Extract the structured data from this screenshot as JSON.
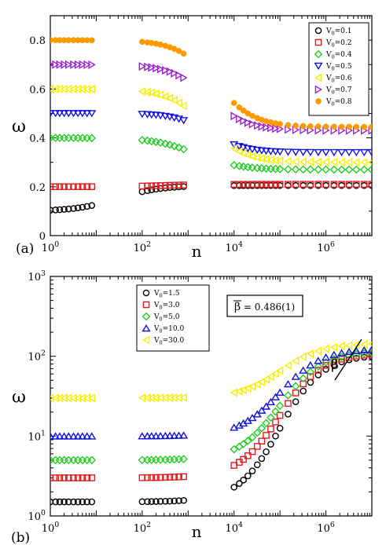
{
  "chart_data": [
    {
      "panel": "(a)",
      "type": "scatter",
      "xscale": "log",
      "xlim": [
        1,
        10000000
      ],
      "ylim": [
        0,
        0.9
      ],
      "xlabel": "n",
      "ylabel": "ω",
      "xticks": [
        {
          "value": 1,
          "base": "10",
          "exp": "0"
        },
        {
          "value": 100,
          "base": "10",
          "exp": "2"
        },
        {
          "value": 10000,
          "base": "10",
          "exp": "4"
        },
        {
          "value": 1000000,
          "base": "10",
          "exp": "6"
        }
      ],
      "yticks": [
        {
          "value": 0,
          "label": "0"
        },
        {
          "value": 0.2,
          "label": "0.2"
        },
        {
          "value": 0.4,
          "label": "0.4"
        },
        {
          "value": 0.6,
          "label": "0.6"
        },
        {
          "value": 0.8,
          "label": "0.8"
        }
      ],
      "legend_position": "top-right",
      "series": [
        {
          "name_base": "V",
          "name_sub": "0",
          "name_rest": "=0.1",
          "marker": "circle",
          "color": "#000000",
          "flat": 0.1,
          "knee": 30,
          "final": 0.205,
          "slope": 1.0
        },
        {
          "name_base": "V",
          "name_sub": "0",
          "name_rest": "=0.2",
          "marker": "square",
          "color": "#e41a1c",
          "flat": 0.2,
          "knee": 300,
          "final": 0.21,
          "slope": 1.0
        },
        {
          "name_base": "V",
          "name_sub": "0",
          "name_rest": "=0.4",
          "marker": "diamond",
          "color": "#22cc22",
          "flat": 0.4,
          "knee": 1500,
          "final": 0.27,
          "slope": 1.0
        },
        {
          "name_base": "V",
          "name_sub": "0",
          "name_rest": "=0.5",
          "marker": "triangle-down",
          "color": "#1111dd",
          "flat": 0.5,
          "knee": 3000,
          "final": 0.34,
          "slope": 1.2
        },
        {
          "name_base": "V",
          "name_sub": "0",
          "name_rest": "=0.6",
          "marker": "triangle-left",
          "color": "#f5f000",
          "flat": 0.6,
          "knee": 2500,
          "final": 0.3,
          "slope": 1.1
        },
        {
          "name_base": "V",
          "name_sub": "0",
          "name_rest": "=0.7",
          "marker": "triangle-right",
          "color": "#9a22cc",
          "flat": 0.7,
          "knee": 3000,
          "final": 0.43,
          "slope": 1.1
        },
        {
          "name_base": "V",
          "name_sub": "0",
          "name_rest": "=0.8",
          "marker": "filled-circle",
          "color": "#ff9900",
          "flat": 0.8,
          "knee": 4000,
          "final": 0.445,
          "slope": 1.1
        }
      ]
    },
    {
      "panel": "(b)",
      "type": "scatter",
      "xscale": "log",
      "yscale": "log",
      "xlim": [
        1,
        10000000
      ],
      "ylim": [
        1,
        1000
      ],
      "xlabel": "n",
      "ylabel": "ω",
      "xticks": [
        {
          "value": 1,
          "base": "10",
          "exp": "0"
        },
        {
          "value": 100,
          "base": "10",
          "exp": "2"
        },
        {
          "value": 10000,
          "base": "10",
          "exp": "4"
        },
        {
          "value": 1000000,
          "base": "10",
          "exp": "6"
        }
      ],
      "yticks": [
        {
          "value": 1,
          "base": "10",
          "exp": "0"
        },
        {
          "value": 10,
          "base": "10",
          "exp": "1"
        },
        {
          "value": 100,
          "base": "10",
          "exp": "2"
        },
        {
          "value": 1000,
          "base": "10",
          "exp": "3"
        }
      ],
      "legend_position": "top-left",
      "annotation": {
        "text_beta_bar": "β",
        "text_value": " = 0.486(1)",
        "slope_label": "β"
      },
      "series": [
        {
          "name_base": "V",
          "name_sub": "0",
          "name_rest": "=1.5",
          "marker": "circle",
          "color": "#000000",
          "flat": 1.5,
          "knee": 100000,
          "final": 105,
          "slope": 1.0
        },
        {
          "name_base": "V",
          "name_sub": "0",
          "name_rest": "=3.0",
          "marker": "square",
          "color": "#e41a1c",
          "flat": 3.0,
          "knee": 100000,
          "final": 110,
          "slope": 1.0
        },
        {
          "name_base": "V",
          "name_sub": "0",
          "name_rest": "=5.0",
          "marker": "diamond",
          "color": "#22cc22",
          "flat": 5.0,
          "knee": 100000,
          "final": 115,
          "slope": 1.0
        },
        {
          "name_base": "V",
          "name_sub": "0",
          "name_rest": "=10.0",
          "marker": "triangle-up",
          "color": "#1111dd",
          "flat": 10.0,
          "knee": 100000,
          "final": 125,
          "slope": 1.0
        },
        {
          "name_base": "V",
          "name_sub": "0",
          "name_rest": "=30.0",
          "marker": "triangle-left",
          "color": "#f5f000",
          "flat": 30.0,
          "knee": 100000,
          "final": 145,
          "slope": 1.0
        }
      ]
    }
  ],
  "panel_labels": {
    "a": "(a)",
    "b": "(b)"
  }
}
